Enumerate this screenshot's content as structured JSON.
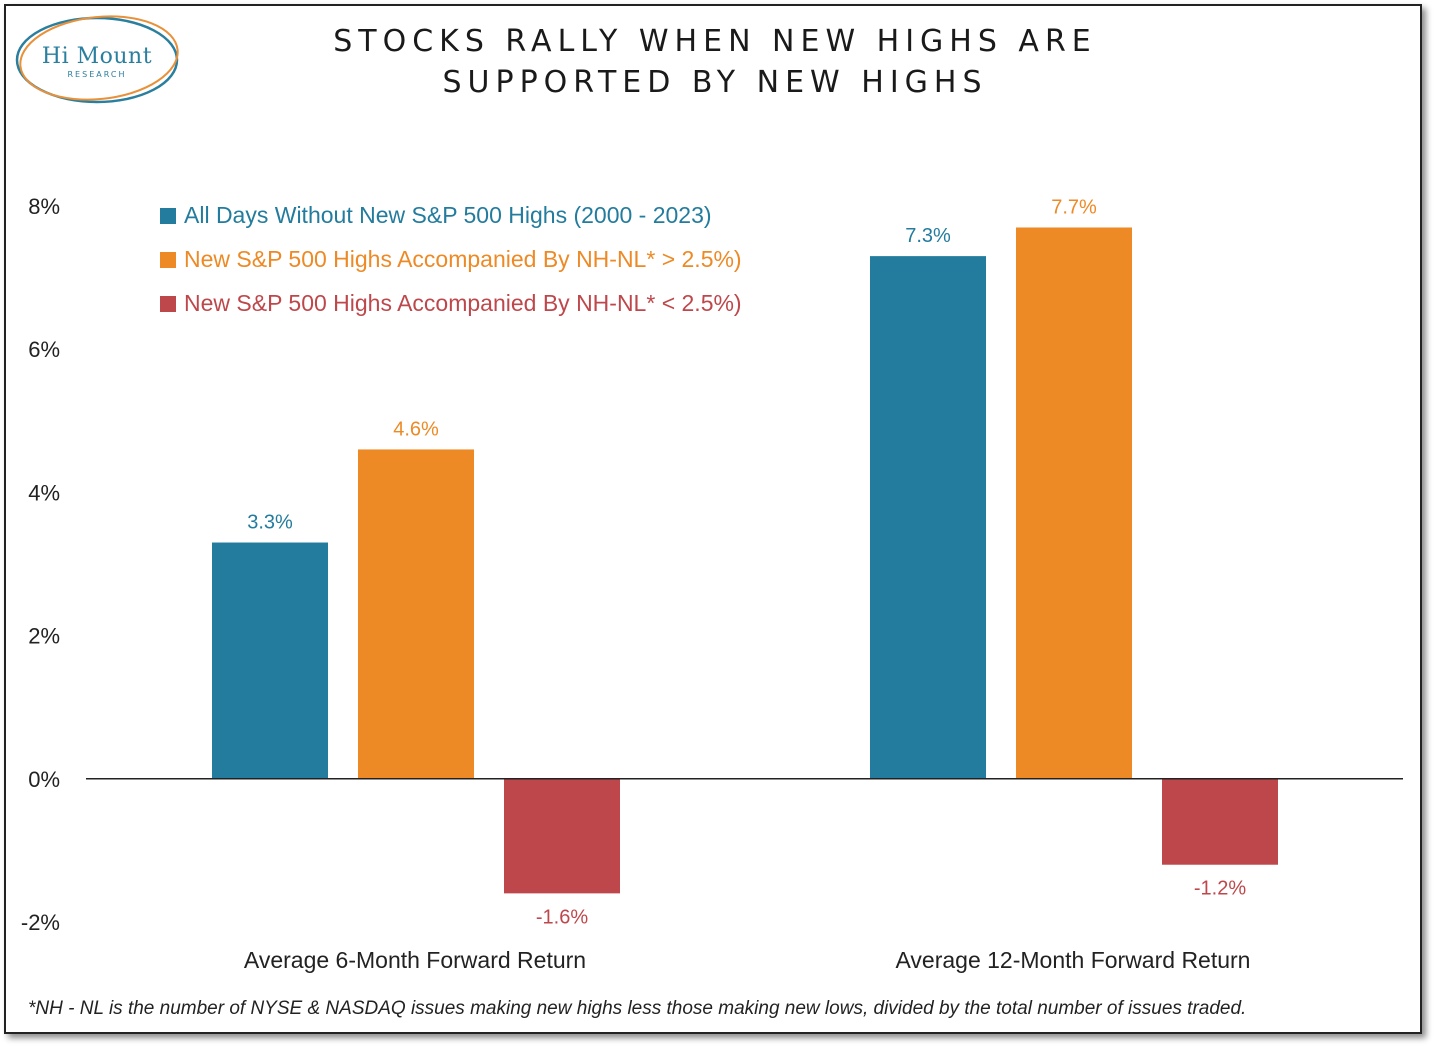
{
  "logo": {
    "name": "Hi Mount",
    "subtitle": "RESEARCH"
  },
  "title_lines": [
    "STOCKS RALLY WHEN NEW HIGHS ARE",
    "SUPPORTED BY NEW HIGHS"
  ],
  "footnote": "*NH - NL is the number of NYSE & NASDAQ issues making new highs less those making new lows, divided by the total number of issues traded.",
  "colors": {
    "blue": "#237c9d",
    "orange": "#ed8a25",
    "red": "#be474b",
    "logo": "#2a7f9e",
    "logo_ring": "#e8913a"
  },
  "chart_data": {
    "type": "bar",
    "title": "STOCKS RALLY WHEN NEW HIGHS ARE SUPPORTED BY NEW HIGHS",
    "categories": [
      "Average 6-Month Forward Return",
      "Average 12-Month Forward Return"
    ],
    "series": [
      {
        "name": "All Days Without New S&P 500 Highs (2000 - 2023)",
        "values": [
          3.3,
          7.3
        ],
        "labels": [
          "3.3%",
          "7.3%"
        ],
        "color": "#237c9d"
      },
      {
        "name": "New S&P 500 Highs Accompanied By NH-NL* > 2.5%)",
        "values": [
          4.6,
          7.7
        ],
        "labels": [
          "4.6%",
          "7.7%"
        ],
        "color": "#ed8a25"
      },
      {
        "name": "New S&P 500 Highs Accompanied By NH-NL* < 2.5%)",
        "values": [
          -1.6,
          -1.2
        ],
        "labels": [
          "-1.6%",
          "-1.2%"
        ],
        "color": "#be474b"
      }
    ],
    "yticks": [
      -2,
      0,
      2,
      4,
      6,
      8
    ],
    "ytick_labels": [
      "-2%",
      "0%",
      "2%",
      "4%",
      "6%",
      "8%"
    ],
    "ylim": [
      -2,
      8
    ],
    "xlabel": "",
    "ylabel": "",
    "grid": false,
    "legend_position": "top-left"
  }
}
